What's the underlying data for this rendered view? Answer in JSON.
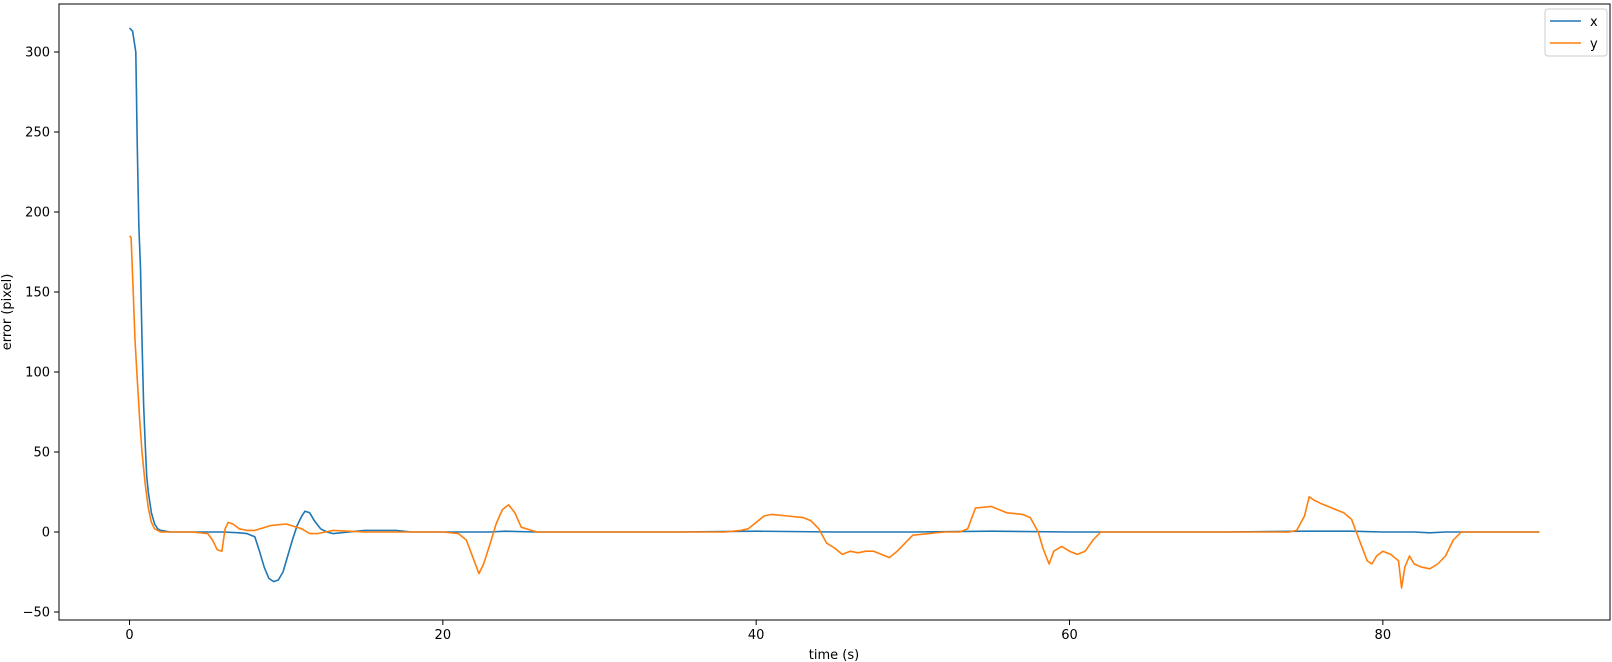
{
  "chart_data": {
    "type": "line",
    "title": "",
    "xlabel": "time (s)",
    "ylabel": "error (pixel)",
    "xlim": [
      -4.5,
      94.5
    ],
    "ylim": [
      -55,
      330
    ],
    "xticks": [
      0,
      20,
      40,
      60,
      80
    ],
    "yticks": [
      -50,
      0,
      50,
      100,
      150,
      200,
      250,
      300
    ],
    "grid": false,
    "legend_position": "top-right",
    "series": [
      {
        "name": "x",
        "color": "#1f77b4",
        "x": [
          0,
          0.2,
          0.4,
          0.5,
          0.6,
          0.7,
          0.8,
          0.9,
          1.0,
          1.1,
          1.2,
          1.4,
          1.6,
          1.8,
          2.0,
          2.3,
          2.6,
          3,
          4,
          5,
          6,
          7,
          7.5,
          8,
          8.3,
          8.6,
          8.9,
          9.2,
          9.5,
          9.8,
          10.1,
          10.4,
          10.7,
          11.0,
          11.2,
          11.5,
          11.8,
          12.2,
          12.6,
          13,
          14,
          15,
          16,
          17,
          18,
          20,
          22,
          23,
          24,
          26,
          30,
          35,
          40,
          45,
          50,
          55,
          60,
          65,
          70,
          75,
          78,
          80,
          82,
          83,
          84,
          86,
          88,
          90
        ],
        "y": [
          315,
          313,
          300,
          240,
          190,
          165,
          120,
          80,
          55,
          35,
          25,
          12,
          5,
          2,
          1,
          0.5,
          0,
          0,
          0,
          0,
          0,
          -0.5,
          -1,
          -3,
          -12,
          -22,
          -29,
          -31,
          -30,
          -25,
          -15,
          -5,
          4,
          10,
          13,
          12,
          7,
          2,
          0,
          -1,
          0,
          1,
          1,
          1,
          0,
          0,
          0,
          0,
          0.5,
          0,
          0,
          0,
          0.5,
          0,
          0,
          0.5,
          0,
          0,
          0,
          0.5,
          0.5,
          0,
          0,
          -0.5,
          0,
          0,
          0,
          0
        ]
      },
      {
        "name": "y",
        "color": "#ff7f0e",
        "x": [
          0,
          0.1,
          0.2,
          0.35,
          0.5,
          0.65,
          0.8,
          1.0,
          1.2,
          1.4,
          1.6,
          1.8,
          2.0,
          2.5,
          3,
          4,
          5,
          5.3,
          5.6,
          5.9,
          6.1,
          6.3,
          6.6,
          7,
          7.5,
          8,
          9,
          10,
          11,
          11.5,
          12,
          13,
          15,
          17,
          20,
          21,
          21.5,
          22,
          22.3,
          22.6,
          23,
          23.4,
          23.8,
          24.2,
          24.6,
          25,
          26,
          30,
          35,
          38,
          39,
          39.5,
          40,
          40.5,
          41,
          42,
          43,
          43.5,
          44,
          44.5,
          45,
          45.5,
          46,
          46.5,
          47,
          47.5,
          48,
          48.5,
          49,
          50,
          52,
          53,
          53.5,
          54,
          55,
          56,
          57,
          57.5,
          58,
          58.3,
          58.7,
          59,
          59.5,
          60,
          60.5,
          61,
          61.5,
          62,
          63,
          65,
          70,
          74,
          74.5,
          75,
          75.3,
          75.6,
          76,
          76.5,
          77,
          77.5,
          78,
          78.5,
          79,
          79.3,
          79.6,
          80,
          80.5,
          81,
          81.2,
          81.4,
          81.7,
          82,
          82.5,
          83,
          83.5,
          84,
          84.5,
          85,
          86,
          88,
          90
        ],
        "y": [
          185,
          184,
          160,
          120,
          95,
          70,
          50,
          30,
          15,
          6,
          2,
          1,
          0,
          0,
          0,
          0,
          -1,
          -5,
          -11,
          -12,
          2,
          6,
          5,
          2,
          1,
          1,
          4,
          5,
          2,
          -1,
          -1,
          1,
          0,
          0,
          0,
          -1,
          -5,
          -18,
          -26,
          -20,
          -8,
          5,
          14,
          17,
          12,
          3,
          0,
          0,
          0,
          0,
          1,
          2,
          6,
          10,
          11,
          10,
          9,
          7,
          2,
          -7,
          -10,
          -14,
          -12,
          -13,
          -12,
          -12,
          -14,
          -16,
          -12,
          -2,
          0,
          0,
          2,
          15,
          16,
          12,
          11,
          9,
          0,
          -10,
          -20,
          -12,
          -9,
          -12,
          -14,
          -12,
          -5,
          0,
          0,
          0,
          0,
          0,
          1,
          10,
          22,
          20,
          18,
          16,
          14,
          12,
          8,
          -5,
          -18,
          -20,
          -15,
          -12,
          -14,
          -18,
          -35,
          -22,
          -15,
          -20,
          -22,
          -23,
          -20,
          -15,
          -5,
          0,
          0,
          0,
          0
        ]
      }
    ]
  }
}
